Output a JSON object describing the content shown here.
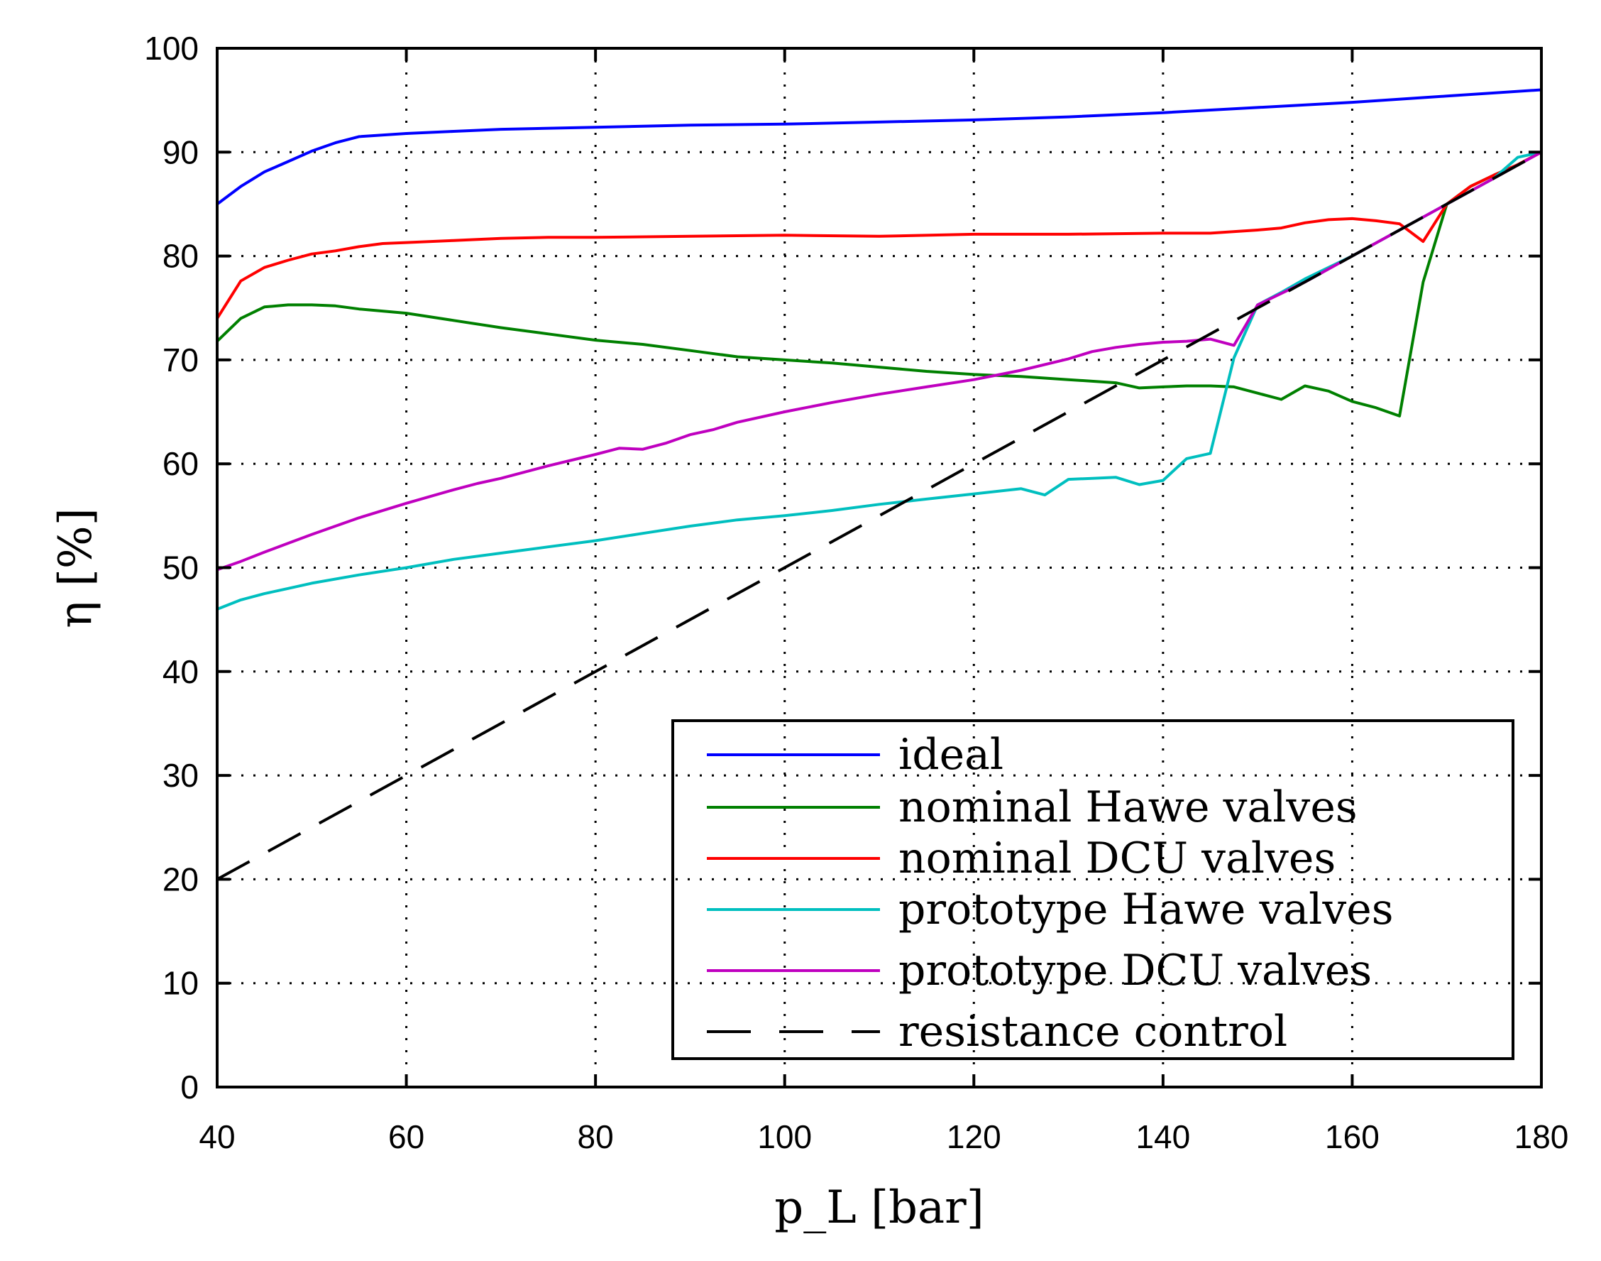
{
  "chart_data": {
    "type": "line",
    "title": "",
    "xlabel": "p_L [bar]",
    "ylabel": "η [%]",
    "xlim": [
      40,
      180
    ],
    "ylim": [
      0,
      100
    ],
    "xticks": [
      40,
      60,
      80,
      100,
      120,
      140,
      160,
      180
    ],
    "yticks": [
      0,
      10,
      20,
      30,
      40,
      50,
      60,
      70,
      80,
      90,
      100
    ],
    "grid": true,
    "legend_position": "bottom-right",
    "series": [
      {
        "name": "ideal",
        "color": "#0000ff",
        "dash": "solid",
        "x": [
          40,
          42.5,
          45,
          47.5,
          50,
          52.5,
          55,
          60,
          65,
          70,
          80,
          90,
          100,
          110,
          120,
          130,
          140,
          150,
          160,
          170,
          180
        ],
        "y": [
          85,
          86.7,
          88.1,
          89.1,
          90.1,
          90.9,
          91.5,
          91.8,
          92.0,
          92.2,
          92.4,
          92.6,
          92.7,
          92.9,
          93.1,
          93.4,
          93.8,
          94.3,
          94.8,
          95.4,
          96.0
        ]
      },
      {
        "name": "nominal Hawe valves",
        "color": "#008000",
        "dash": "solid",
        "x": [
          40,
          42.5,
          45,
          47.5,
          50,
          52.5,
          55,
          60,
          65,
          70,
          75,
          80,
          85,
          90,
          95,
          100,
          105,
          110,
          115,
          120,
          125,
          130,
          135,
          137.5,
          140,
          142.5,
          145,
          147.5,
          150,
          152.5,
          155,
          157.5,
          160,
          162.5,
          165,
          167.5,
          170,
          172.5,
          175,
          177.5,
          180
        ],
        "y": [
          71.8,
          74.0,
          75.1,
          75.3,
          75.3,
          75.2,
          74.9,
          74.5,
          73.8,
          73.1,
          72.5,
          71.9,
          71.5,
          70.9,
          70.3,
          70.0,
          69.7,
          69.3,
          68.9,
          68.6,
          68.4,
          68.1,
          67.8,
          67.3,
          67.4,
          67.5,
          67.5,
          67.4,
          66.8,
          66.2,
          67.5,
          67.0,
          66.0,
          65.4,
          64.6,
          77.5,
          85.0,
          86.7,
          87.8,
          88.8,
          90.0
        ]
      },
      {
        "name": "nominal DCU valves",
        "color": "#ff0000",
        "dash": "solid",
        "x": [
          40,
          42.5,
          45,
          47.5,
          50,
          52.5,
          55,
          57.5,
          60,
          65,
          70,
          75,
          80,
          90,
          100,
          110,
          120,
          130,
          140,
          145,
          150,
          152.5,
          155,
          157.5,
          160,
          162.5,
          165,
          167.5,
          170,
          172.5,
          175,
          177.5,
          180
        ],
        "y": [
          74.0,
          77.6,
          78.9,
          79.6,
          80.2,
          80.5,
          80.9,
          81.2,
          81.3,
          81.5,
          81.7,
          81.8,
          81.8,
          81.9,
          82.0,
          81.9,
          82.1,
          82.1,
          82.2,
          82.2,
          82.5,
          82.7,
          83.2,
          83.5,
          83.6,
          83.4,
          83.1,
          81.4,
          85.0,
          86.7,
          87.8,
          88.8,
          90.0
        ]
      },
      {
        "name": "prototype Hawe valves",
        "color": "#00bfbf",
        "dash": "solid",
        "x": [
          40,
          42.5,
          45,
          47.5,
          50,
          55,
          60,
          65,
          70,
          75,
          80,
          85,
          90,
          95,
          100,
          105,
          110,
          115,
          120,
          125,
          127.5,
          130,
          132.5,
          135,
          137.5,
          140,
          142.5,
          145,
          147.5,
          150,
          152.5,
          155,
          160,
          165,
          170,
          175,
          177.5,
          180
        ],
        "y": [
          46.0,
          46.9,
          47.5,
          48.0,
          48.5,
          49.3,
          50.0,
          50.8,
          51.4,
          52.0,
          52.6,
          53.3,
          54.0,
          54.6,
          55.0,
          55.5,
          56.1,
          56.6,
          57.1,
          57.6,
          57.0,
          58.5,
          58.6,
          58.7,
          58.0,
          58.4,
          60.5,
          61.0,
          70.2,
          75.3,
          76.5,
          77.8,
          80.0,
          82.5,
          85.0,
          87.5,
          89.5,
          90.0
        ]
      },
      {
        "name": "prototype DCU valves",
        "color": "#bf00bf",
        "dash": "solid",
        "x": [
          40,
          42.5,
          45,
          50,
          55,
          60,
          65,
          67.5,
          70,
          75,
          80,
          82.5,
          85,
          87.5,
          90,
          92.5,
          95,
          100,
          105,
          110,
          115,
          120,
          125,
          130,
          132.5,
          135,
          137.5,
          140,
          142.5,
          145,
          147.5,
          150,
          155,
          160,
          165,
          170,
          175,
          180
        ],
        "y": [
          49.8,
          50.6,
          51.5,
          53.2,
          54.8,
          56.2,
          57.5,
          58.1,
          58.6,
          59.8,
          60.9,
          61.5,
          61.4,
          62.0,
          62.8,
          63.3,
          64.0,
          65.0,
          65.9,
          66.7,
          67.4,
          68.1,
          69.0,
          70.1,
          70.8,
          71.2,
          71.5,
          71.7,
          71.8,
          72.0,
          71.4,
          75.3,
          77.5,
          80.0,
          82.5,
          85.0,
          87.5,
          90.0
        ]
      },
      {
        "name": "resistance control",
        "color": "#000000",
        "dash": "dashed",
        "x": [
          40,
          180
        ],
        "y": [
          20,
          90
        ]
      }
    ]
  }
}
